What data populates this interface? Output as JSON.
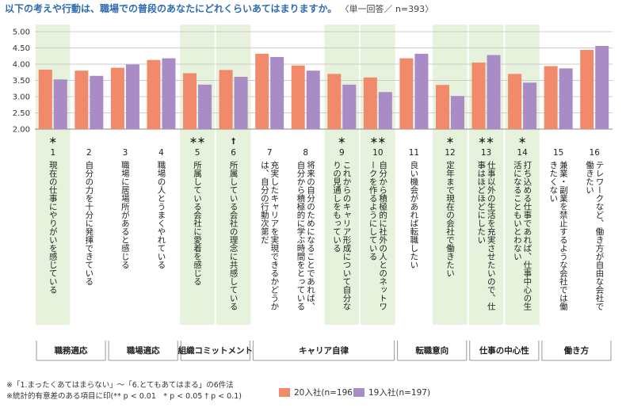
{
  "title": "以下の考えや行動は、職場での普段のあなたにどれくらいあてはまりますか。",
  "title_note": "〈単一回答／ n=393〉",
  "colors": {
    "series1": "#f08a6b",
    "series2": "#a98bc5",
    "highlight": "#e6f2dc",
    "grid": "#cccccc"
  },
  "chart_data": {
    "type": "bar",
    "ylim": [
      2.0,
      5.0
    ],
    "yticks": [
      "2.00",
      "2.50",
      "3.00",
      "3.50",
      "4.00",
      "4.50",
      "5.00"
    ],
    "categories": [
      {
        "num": "1",
        "mark": "＊",
        "label": "現在の仕事にやりがいを感じている"
      },
      {
        "num": "2",
        "mark": "",
        "label": "自分の力を十分に発揮できている"
      },
      {
        "num": "3",
        "mark": "",
        "label": "職場に居場所があると感じる"
      },
      {
        "num": "4",
        "mark": "",
        "label": "職場の人とうまくやれている"
      },
      {
        "num": "5",
        "mark": "＊＊",
        "label": "所属している会社に愛着を感じる"
      },
      {
        "num": "6",
        "mark": "†",
        "label": "所属している会社の理念に共感している"
      },
      {
        "num": "7",
        "mark": "",
        "label": "充実したキャリアを実現できるかどうかは、自分の行動次第だ"
      },
      {
        "num": "8",
        "mark": "",
        "label": "将来の自分のためになることであれば、自分から積極的に学ぶ時間をとっている"
      },
      {
        "num": "9",
        "mark": "＊",
        "label": "これからのキャリア形成について自分なりの見通しをもっている"
      },
      {
        "num": "10",
        "mark": "＊＊",
        "label": "自分から積極的に社外の人とのネットワークを作るようにしている"
      },
      {
        "num": "11",
        "mark": "",
        "label": "良い機会があれば転職したい"
      },
      {
        "num": "12",
        "mark": "＊",
        "label": "定年まで現在の会社で働きたい"
      },
      {
        "num": "13",
        "mark": "＊＊",
        "label": "仕事以外の生活を充実させたいので、仕事はほどほどにしたい"
      },
      {
        "num": "14",
        "mark": "＊",
        "label": "打ち込める仕事であれば、仕事中心の生活になることもいとわない"
      },
      {
        "num": "15",
        "mark": "",
        "label": "兼業・副業を禁止するような会社では働きたくない"
      },
      {
        "num": "16",
        "mark": "",
        "label": "テレワークなど、働き方が自由な会社で働きたい"
      }
    ],
    "series": [
      {
        "name": "20入社(n=196)",
        "values": [
          3.83,
          3.8,
          3.89,
          4.13,
          3.72,
          3.82,
          4.32,
          3.96,
          3.7,
          3.59,
          4.18,
          3.36,
          4.05,
          3.7,
          3.94,
          4.44
        ]
      },
      {
        "name": "19入社(n=197)",
        "values": [
          3.53,
          3.64,
          3.99,
          4.18,
          3.37,
          3.61,
          4.22,
          3.8,
          3.37,
          3.14,
          4.32,
          3.02,
          4.28,
          3.43,
          3.87,
          4.56
        ]
      }
    ],
    "highlighted": [
      0,
      4,
      5,
      8,
      9,
      11,
      12,
      13
    ],
    "groups": [
      {
        "label": "職務適応",
        "start": 0,
        "end": 1
      },
      {
        "label": "職場適応",
        "start": 2,
        "end": 3
      },
      {
        "label": "組織コミットメント",
        "start": 4,
        "end": 5
      },
      {
        "label": "キャリア自律",
        "start": 6,
        "end": 9
      },
      {
        "label": "転職意向",
        "start": 10,
        "end": 11
      },
      {
        "label": "仕事の中心性",
        "start": 12,
        "end": 13
      },
      {
        "label": "働き方",
        "start": 14,
        "end": 15
      }
    ]
  },
  "footnotes": [
    "※「1.まったくあてはまらない」〜「6.とてもあてはまる」の6件法",
    "※統計的有意差のある項目に印(** p < 0.01　* p < 0.05 † p < 0.1)"
  ]
}
